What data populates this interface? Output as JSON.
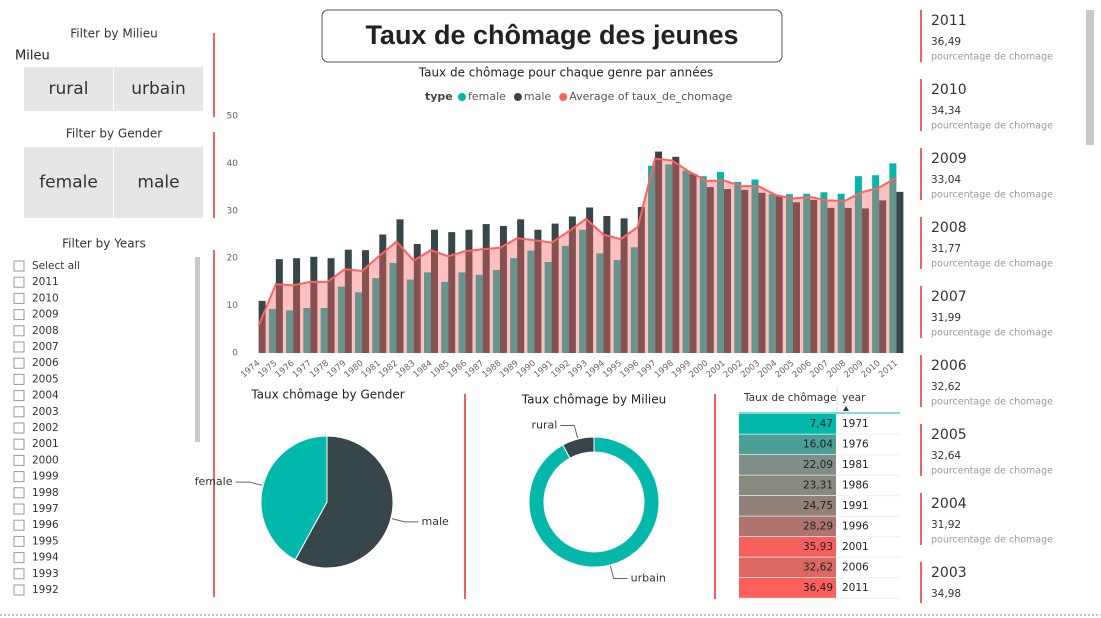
{
  "title": "Taux de chômage des jeunes",
  "filters": {
    "milieu": {
      "title": "Filter by Milieu",
      "label": "Mileu",
      "options": [
        "rural",
        "urbain"
      ]
    },
    "gender": {
      "title": "Filter by Gender",
      "options": [
        "female",
        "male"
      ]
    },
    "years": {
      "title": "Filter by Years",
      "options": [
        "Select all",
        "2011",
        "2010",
        "2009",
        "2008",
        "2007",
        "2006",
        "2005",
        "2004",
        "2003",
        "2002",
        "2001",
        "2000",
        "1999",
        "1998",
        "1997",
        "1996",
        "1995",
        "1994",
        "1993",
        "1992"
      ]
    }
  },
  "chart_data": [
    {
      "type": "combo",
      "title": "Taux de chômage pour chaque genre par années",
      "legend_title": "type",
      "categories": [
        "1974",
        "1975",
        "1976",
        "1977",
        "1978",
        "1979",
        "1980",
        "1981",
        "1982",
        "1983",
        "1984",
        "1985",
        "1986",
        "1987",
        "1988",
        "1989",
        "1990",
        "1991",
        "1992",
        "1993",
        "1994",
        "1995",
        "1996",
        "1997",
        "1998",
        "1999",
        "2000",
        "2001",
        "2002",
        "2003",
        "2004",
        "2005",
        "2006",
        "2007",
        "2008",
        "2009",
        "2010",
        "2011"
      ],
      "series": [
        {
          "name": "female",
          "kind": "bar",
          "color": "#01B8AA",
          "values": [
            null,
            9.3,
            9,
            9.5,
            9.5,
            14,
            12.8,
            15.8,
            19,
            15.5,
            17,
            15,
            17,
            16.5,
            17.5,
            20,
            21.6,
            19.2,
            22.6,
            26,
            21,
            19.6,
            22.3,
            39.5,
            39.8,
            38.5,
            37.3,
            38.2,
            36.1,
            36.6,
            33.5,
            33.5,
            33.6,
            33.9,
            33.6,
            37.3,
            37.5,
            40
          ]
        },
        {
          "name": "male",
          "kind": "bar",
          "color": "#374649",
          "values": [
            11,
            19.8,
            20,
            20.3,
            20,
            21.8,
            21.7,
            25,
            28.2,
            23,
            26,
            25.5,
            26,
            27.2,
            26.8,
            28.2,
            26,
            27.3,
            28.8,
            30.7,
            28.9,
            28.4,
            30.8,
            42.5,
            41.4,
            37.8,
            35,
            34.6,
            34.4,
            33.8,
            33.2,
            31.8,
            32.3,
            30.6,
            30.6,
            30.5,
            32.2,
            34
          ]
        },
        {
          "name": "Average of taux_de_chomage",
          "kind": "area-line",
          "color": "#FD625E",
          "values": [
            5.8,
            14.5,
            14.3,
            15,
            15,
            17.7,
            17.3,
            20.5,
            23.5,
            19.5,
            21.7,
            20.4,
            21.5,
            21.9,
            22.2,
            24.2,
            23.8,
            23.3,
            25.7,
            28.3,
            25,
            24,
            26.6,
            41,
            40.6,
            38.2,
            36.3,
            36.4,
            35.2,
            35.2,
            33.3,
            32.6,
            32.9,
            32.2,
            32.1,
            33.9,
            34.9,
            37
          ]
        }
      ],
      "ylim": [
        0,
        50
      ],
      "yticks": [
        0,
        10,
        20,
        30,
        40,
        50
      ],
      "grid": false
    },
    {
      "type": "pie",
      "title": "Taux chômage by Gender",
      "categories": [
        "female",
        "male"
      ],
      "values": [
        42,
        58
      ],
      "colors": [
        "#01B8AA",
        "#374649"
      ]
    },
    {
      "type": "donut",
      "title": "Taux chômage by Milieu",
      "categories": [
        "rural",
        "urbain"
      ],
      "values": [
        8,
        92
      ],
      "colors": [
        "#374649",
        "#01B8AA"
      ]
    }
  ],
  "table": {
    "headers": [
      "Taux de chômage",
      "year"
    ],
    "rows": [
      [
        "7,47",
        "1971"
      ],
      [
        "16,04",
        "1976"
      ],
      [
        "22,09",
        "1981"
      ],
      [
        "23,31",
        "1986"
      ],
      [
        "24,75",
        "1991"
      ],
      [
        "28,29",
        "1996"
      ],
      [
        "35,93",
        "2001"
      ],
      [
        "32,62",
        "2006"
      ],
      [
        "36,49",
        "2011"
      ]
    ],
    "colors": [
      "#01B8AA",
      "#4aa097",
      "#7f8f87",
      "#88897f",
      "#938079",
      "#b07470",
      "#f65f5b",
      "#dd6863",
      "#fd5f5c"
    ]
  },
  "cards": [
    {
      "year": "2011",
      "value": "36,49",
      "label": "pourcentage de chomage"
    },
    {
      "year": "2010",
      "value": "34,34",
      "label": "pourcentage de chomage"
    },
    {
      "year": "2009",
      "value": "33,04",
      "label": "pourcentage de chomage"
    },
    {
      "year": "2008",
      "value": "31,77",
      "label": "pourcentage de chomage"
    },
    {
      "year": "2007",
      "value": "31,99",
      "label": "pourcentage de chomage"
    },
    {
      "year": "2006",
      "value": "32,62",
      "label": "pourcentage de chomage"
    },
    {
      "year": "2005",
      "value": "32,64",
      "label": "pourcentage de chomage"
    },
    {
      "year": "2004",
      "value": "31,92",
      "label": "pourcentage de chomage"
    },
    {
      "year": "2003",
      "value": "34,98"
    }
  ]
}
